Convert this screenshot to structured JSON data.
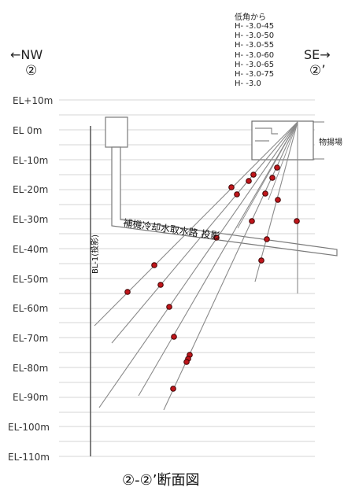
{
  "direction_left": "←NW",
  "direction_left_mark": "②",
  "direction_right": "SE→",
  "direction_right_mark": "②’",
  "legend": {
    "title": "低角から",
    "lines": [
      "H- -3.0-45",
      "H- -3.0-50",
      "H- -3.0-55",
      "H- -3.0-60",
      "H- -3.0-65",
      "H- -3.0-75",
      "H- -3.0"
    ]
  },
  "elevation_labels": [
    "EL+10m",
    "EL 0m",
    "EL-10m",
    "EL-20m",
    "EL-30m",
    "EL-40m",
    "EL-50m",
    "EL-60m",
    "EL-70m",
    "EL-80m",
    "EL-90m",
    "EL-100m",
    "EL-110m"
  ],
  "labels": {
    "borehole": "BL-1(投影)",
    "tunnel": "補機冷却水取水路 投影",
    "yard": "物揚場"
  },
  "caption": "②-②’断面図",
  "colors": {
    "grid": "#d4d4d4",
    "line": "#808080",
    "point_fill": "#c0161b",
    "point_stroke": "#3a0000"
  }
}
